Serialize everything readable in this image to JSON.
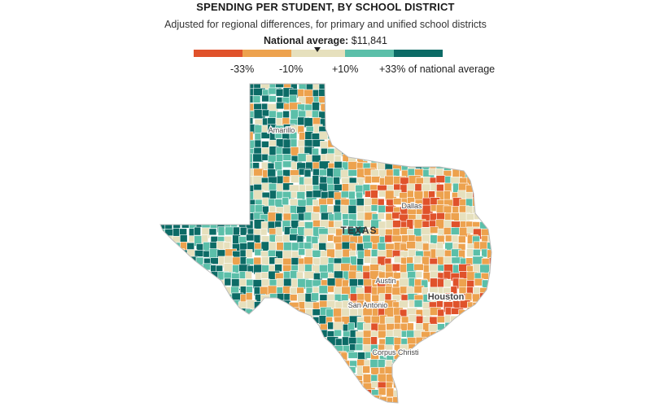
{
  "title": "SPENDING PER STUDENT, BY SCHOOL DISTRICT",
  "subtitle": "Adjusted for regional differences, for primary and unified school districts",
  "national_average": {
    "label": "National average:",
    "value": "$11,841"
  },
  "legend": {
    "bins": [
      {
        "color": "#e0522b"
      },
      {
        "color": "#eda24e"
      },
      {
        "color": "#e6e0bd"
      },
      {
        "color": "#5bbfa9"
      },
      {
        "color": "#0c6b66"
      }
    ],
    "ticks": [
      "-33%",
      "-10%",
      "+10%",
      "+33% of national average"
    ]
  },
  "map": {
    "state_label": "TEXAS",
    "cities": [
      "Amarillo",
      "Dallas",
      "Austin",
      "Houston",
      "San Antonio",
      "Corpus Christi"
    ]
  }
}
